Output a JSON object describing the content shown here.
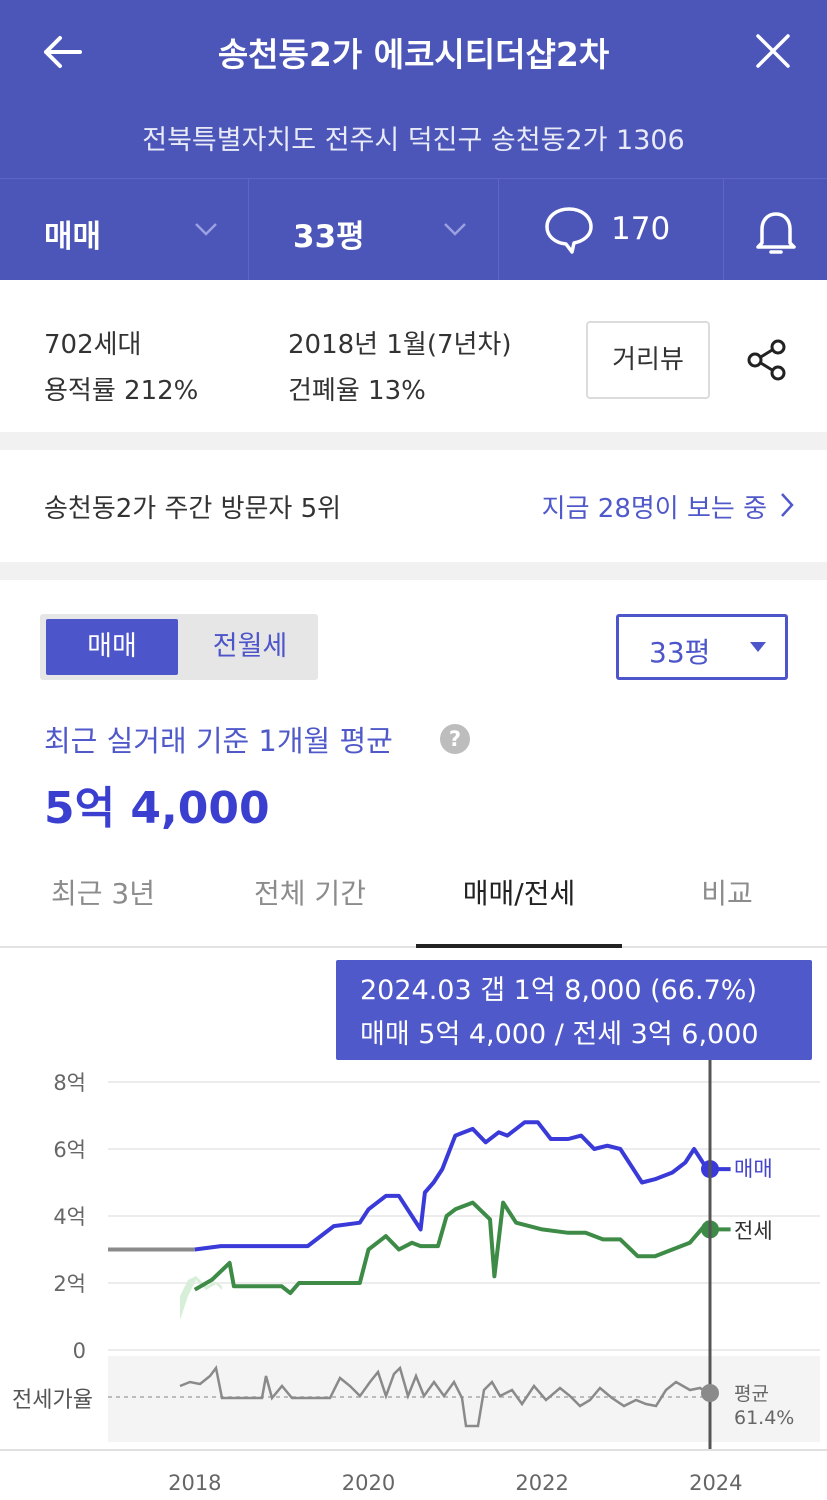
{
  "header": {
    "title": "송천동2가 에코시티더샵2차",
    "address": "전북특별자치도 전주시 덕진구 송천동2가 1306",
    "trade_type": "매매",
    "size": "33평",
    "comment_count": "170"
  },
  "info": {
    "households": "702세대",
    "built": "2018년 1월(7년차)",
    "far": "용적률 212%",
    "bcr": "건폐율 13%",
    "street_view_label": "거리뷰"
  },
  "rank": {
    "label": "송천동2가 주간 방문자 5위",
    "viewers": "지금 28명이 보는 중"
  },
  "price_section": {
    "tab_sale": "매매",
    "tab_rent": "전월세",
    "size_select": "33평",
    "avg_label": "최근 실거래 기준 1개월 평균",
    "help_icon": "?",
    "avg_price": "5억 4,000"
  },
  "chart_tabs": [
    "최근 3년",
    "전체 기간",
    "매매/전세",
    "비교"
  ],
  "tooltip": {
    "line1": "2024.03  갭 1억 8,000 (66.7%)",
    "line2": "매매 5억 4,000 / 전세 3억 6,000"
  },
  "chart_labels": {
    "sale": "매매",
    "jeonse": "전세",
    "ratio_axis": "전세가율",
    "ratio_avg": "평균",
    "ratio_avg_value": "61.4%"
  },
  "colors": {
    "header": "#4c55b8",
    "accent": "#4c55c9",
    "sale_line": "#3a3ad8",
    "jeonse_line": "#3d8b46",
    "ratio_line": "#8a8a8a"
  },
  "chart_data": {
    "type": "line",
    "x_ticks": [
      "2018",
      "2020",
      "2022",
      "2024"
    ],
    "y_ticks": [
      "0",
      "2억",
      "4억",
      "6억",
      "8억"
    ],
    "ylim": [
      0,
      8
    ],
    "xlim": [
      2017.0,
      2025.2
    ],
    "series": [
      {
        "name": "매매",
        "x": [
          2017.0,
          2018.0,
          2018.3,
          2018.6,
          2019.0,
          2019.3,
          2019.6,
          2019.9,
          2020.0,
          2020.2,
          2020.35,
          2020.5,
          2020.6,
          2020.65,
          2020.75,
          2020.85,
          2021.0,
          2021.2,
          2021.35,
          2021.5,
          2021.6,
          2021.8,
          2021.95,
          2022.1,
          2022.3,
          2022.45,
          2022.6,
          2022.75,
          2022.9,
          2023.0,
          2023.15,
          2023.3,
          2023.5,
          2023.65,
          2023.75,
          2023.9,
          2024.1,
          2024.17
        ],
        "values": [
          3.0,
          3.0,
          3.1,
          3.1,
          3.1,
          3.1,
          3.7,
          3.8,
          4.2,
          4.6,
          4.6,
          4.0,
          3.6,
          4.7,
          5.0,
          5.4,
          6.4,
          6.6,
          6.2,
          6.5,
          6.4,
          6.8,
          6.8,
          6.3,
          6.3,
          6.4,
          6.0,
          6.1,
          6.0,
          5.6,
          5.0,
          5.1,
          5.3,
          5.6,
          6.0,
          5.4,
          5.4,
          5.4
        ]
      },
      {
        "name": "전세",
        "x": [
          2018.0,
          2018.2,
          2018.4,
          2018.45,
          2019.0,
          2019.1,
          2019.2,
          2019.5,
          2019.9,
          2020.0,
          2020.2,
          2020.35,
          2020.5,
          2020.6,
          2020.8,
          2020.9,
          2021.0,
          2021.2,
          2021.4,
          2021.45,
          2021.55,
          2021.7,
          2022.0,
          2022.3,
          2022.5,
          2022.7,
          2022.9,
          2023.1,
          2023.3,
          2023.5,
          2023.7,
          2023.9,
          2024.0,
          2024.17
        ],
        "values": [
          1.8,
          2.1,
          2.6,
          1.9,
          1.9,
          1.7,
          2.0,
          2.0,
          2.0,
          3.0,
          3.4,
          3.0,
          3.2,
          3.1,
          3.1,
          4.0,
          4.2,
          4.4,
          3.9,
          2.2,
          4.4,
          3.8,
          3.6,
          3.5,
          3.5,
          3.3,
          3.3,
          2.8,
          2.8,
          3.0,
          3.2,
          3.8,
          3.6,
          3.6
        ]
      }
    ]
  }
}
